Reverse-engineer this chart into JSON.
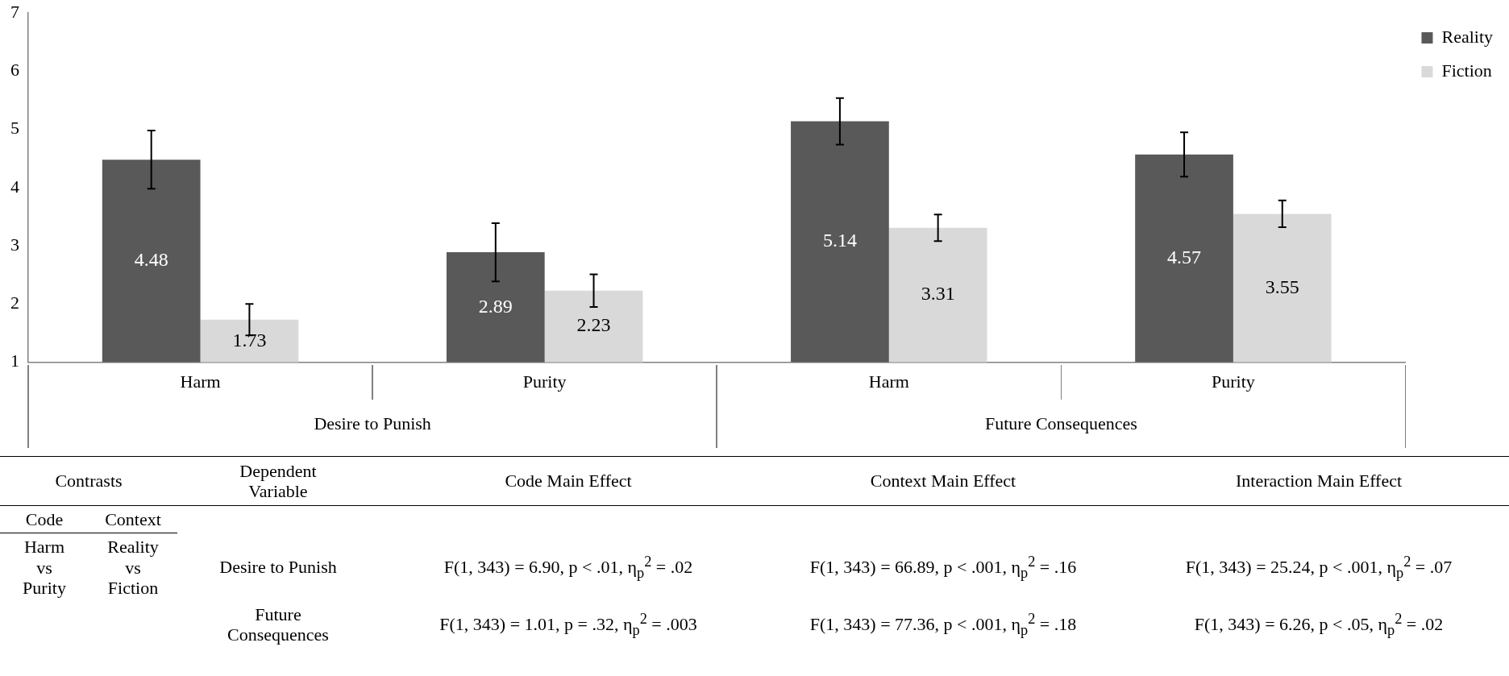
{
  "chart_data": {
    "type": "bar",
    "categories": [
      "Harm",
      "Purity",
      "Harm",
      "Purity"
    ],
    "series": [
      {
        "name": "Reality",
        "color": "#595959",
        "values": [
          4.48,
          2.89,
          5.14,
          4.57
        ],
        "errors": [
          0.5,
          0.5,
          0.4,
          0.38
        ]
      },
      {
        "name": "Fiction",
        "color": "#d9d9d9",
        "values": [
          1.73,
          2.23,
          3.31,
          3.55
        ],
        "errors": [
          0.27,
          0.28,
          0.23,
          0.23
        ]
      }
    ],
    "ylim": [
      1,
      7
    ],
    "yticks": [
      1,
      2,
      3,
      4,
      5,
      6,
      7
    ],
    "grid": false,
    "legend": "top right",
    "data_labels": true,
    "annotations": [
      "Desire to Punish",
      "Future Consequences",
      "Contrasts",
      "Dependent\nVariable",
      "Code Main Effect",
      "Context Main Effect",
      "Interaction Main Effect",
      "Code",
      "Context",
      "Harm\nvs\nPurity",
      "Reality\nvs\nFiction",
      "Desire to Punish",
      "F(1, 343) = 6.90, p < .01, η$_{p}$$^{2}$ = .02",
      "F(1, 343) = 66.89, p < .001, η$_{p}$$^{2}$ = .16",
      "F(1, 343) = 25.24, p < .001, η$_{p}$$^{2}$ = .07",
      "Future\nConsequences",
      "F(1, 343) = 1.01, p = .32, η$_{p}$$^{2}$ = .003",
      "F(1, 343) = 77.36, p < .001, η$_{p}$$^{2}$ = .18",
      "F(1, 343) = 6.26, p < .05, η$_{p}$$^{2}$ = .02"
    ]
  }
}
